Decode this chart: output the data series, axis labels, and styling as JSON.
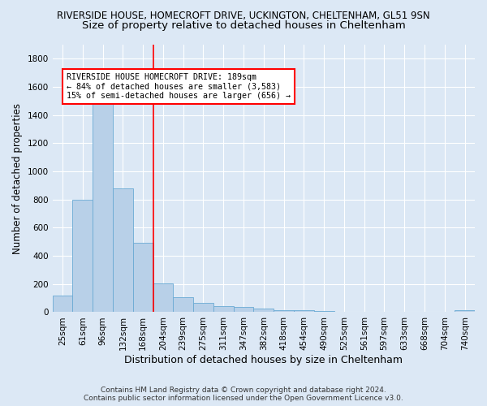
{
  "title1": "RIVERSIDE HOUSE, HOMECROFT DRIVE, UCKINGTON, CHELTENHAM, GL51 9SN",
  "title2": "Size of property relative to detached houses in Cheltenham",
  "xlabel": "Distribution of detached houses by size in Cheltenham",
  "ylabel": "Number of detached properties",
  "footer1": "Contains HM Land Registry data © Crown copyright and database right 2024.",
  "footer2": "Contains public sector information licensed under the Open Government Licence v3.0.",
  "categories": [
    "25sqm",
    "61sqm",
    "96sqm",
    "132sqm",
    "168sqm",
    "204sqm",
    "239sqm",
    "275sqm",
    "311sqm",
    "347sqm",
    "382sqm",
    "418sqm",
    "454sqm",
    "490sqm",
    "525sqm",
    "561sqm",
    "597sqm",
    "633sqm",
    "668sqm",
    "704sqm",
    "740sqm"
  ],
  "values": [
    120,
    800,
    1480,
    880,
    490,
    205,
    105,
    65,
    45,
    35,
    25,
    15,
    12,
    8,
    5,
    4,
    3,
    2,
    2,
    1,
    15
  ],
  "bar_color": "#b8d0e8",
  "bar_edge_color": "#6aaad4",
  "red_line_index": 4.5,
  "annotation_text": "RIVERSIDE HOUSE HOMECROFT DRIVE: 189sqm\n← 84% of detached houses are smaller (3,583)\n15% of semi-detached houses are larger (656) →",
  "ylim": [
    0,
    1900
  ],
  "yticks": [
    0,
    200,
    400,
    600,
    800,
    1000,
    1200,
    1400,
    1600,
    1800
  ],
  "bg_color": "#dce8f5",
  "grid_color": "#c5d8ec",
  "title1_fontsize": 8.5,
  "title2_fontsize": 9.5,
  "xlabel_fontsize": 9,
  "ylabel_fontsize": 8.5,
  "tick_fontsize": 7.5,
  "annot_fontsize": 7.2,
  "footer_fontsize": 6.5
}
